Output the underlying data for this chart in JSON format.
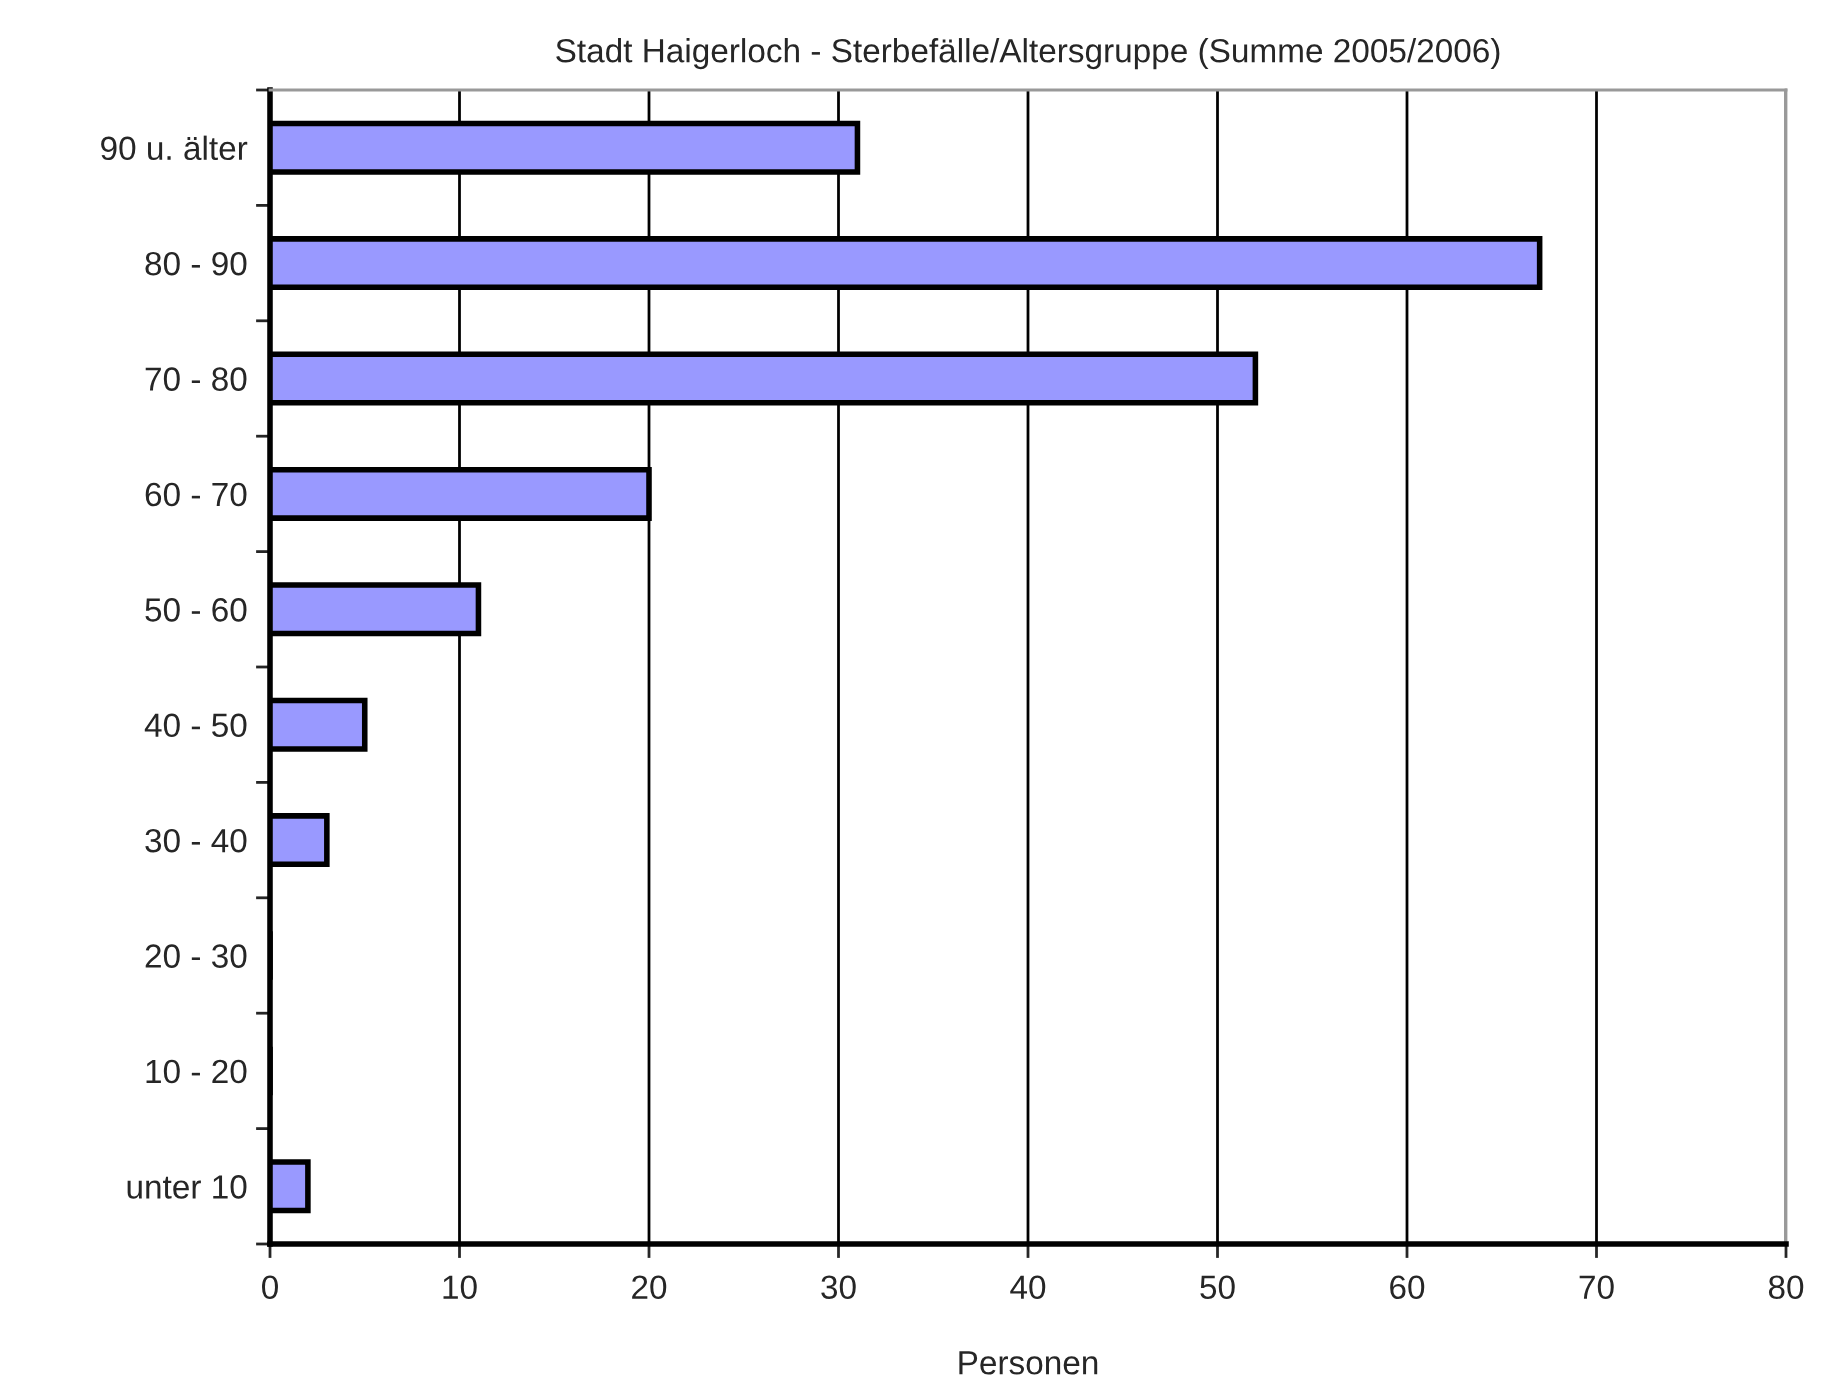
{
  "chart_data": {
    "type": "bar",
    "orientation": "horizontal",
    "title": "Stadt Haigerloch - Sterbefälle/Altersgruppe (Summe 2005/2006)",
    "xlabel": "Personen",
    "categories": [
      "90 u. älter",
      "80 - 90",
      "70 - 80",
      "60 - 70",
      "50 - 60",
      "40 - 50",
      "30 - 40",
      "20 - 30",
      "10 - 20",
      "unter 10"
    ],
    "values": [
      31,
      67,
      52,
      20,
      11,
      5,
      3,
      0,
      0,
      2
    ],
    "color": "#9999ff",
    "xlim": [
      0,
      80
    ],
    "xticks": [
      0,
      10,
      20,
      30,
      40,
      50,
      60,
      70,
      80
    ],
    "grid": "x"
  }
}
